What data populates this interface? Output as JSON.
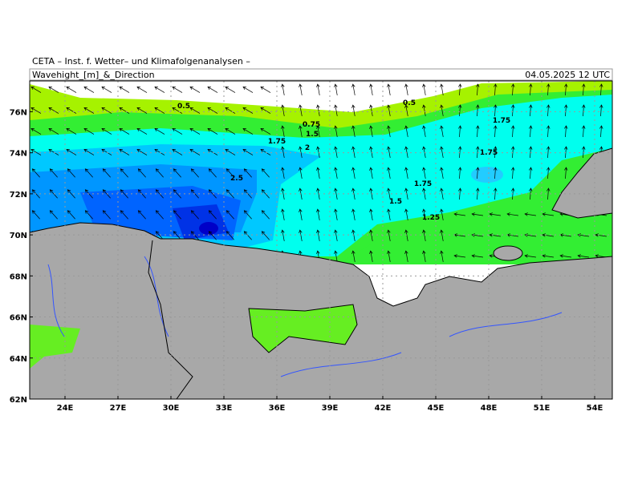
{
  "header": {
    "institute": "CETA – Inst. f. Wetter– und Klimafolgenanalysen –",
    "title": "Wavehight_[m]_&_Direction",
    "valid_time": "04.05.2025 12 UTC"
  },
  "map": {
    "lat_lim": [
      62,
      77.5
    ],
    "lon_lim": [
      22,
      55
    ],
    "lat_ticks": [
      {
        "value": 76,
        "label": "76N"
      },
      {
        "value": 74,
        "label": "74N"
      },
      {
        "value": 72,
        "label": "72N"
      },
      {
        "value": 70,
        "label": "70N"
      },
      {
        "value": 68,
        "label": "68N"
      },
      {
        "value": 66,
        "label": "66N"
      },
      {
        "value": 64,
        "label": "64N"
      },
      {
        "value": 62,
        "label": "62N"
      }
    ],
    "lon_ticks": [
      {
        "value": 24,
        "label": "24E"
      },
      {
        "value": 27,
        "label": "27E"
      },
      {
        "value": 30,
        "label": "30E"
      },
      {
        "value": 33,
        "label": "33E"
      },
      {
        "value": 36,
        "label": "36E"
      },
      {
        "value": 39,
        "label": "39E"
      },
      {
        "value": 42,
        "label": "42E"
      },
      {
        "value": 45,
        "label": "45E"
      },
      {
        "value": 48,
        "label": "48E"
      },
      {
        "value": 51,
        "label": "51E"
      },
      {
        "value": 54,
        "label": "54E"
      }
    ],
    "contour_labels": [
      "0.5",
      "0.5",
      "0.75",
      "1.5",
      "1.75",
      "2",
      "1.75",
      "1.75",
      "2.5",
      "1.75",
      "1.5",
      "1.25"
    ]
  }
}
